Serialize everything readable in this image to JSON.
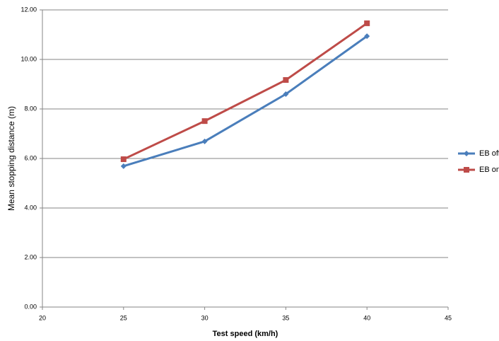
{
  "chart_data": {
    "type": "line",
    "x_label": "Test speed (km/h)",
    "y_label": "Mean stopping distance (m)",
    "x": [
      25,
      30,
      35,
      40
    ],
    "series": [
      {
        "name": "EB off",
        "color": "#4a7ebb",
        "marker": "diamond",
        "values": [
          5.69,
          6.69,
          8.6,
          10.94
        ]
      },
      {
        "name": "EB on",
        "color": "#be4b48",
        "marker": "square",
        "values": [
          5.97,
          7.51,
          9.17,
          11.46
        ]
      }
    ],
    "xlim": [
      20,
      45
    ],
    "xticks": [
      20,
      25,
      30,
      35,
      40,
      45
    ],
    "ylim": [
      0,
      12
    ],
    "yticks": [
      {
        "value": 0,
        "label": "0.00"
      },
      {
        "value": 2,
        "label": "2.00"
      },
      {
        "value": 4,
        "label": "4.00"
      },
      {
        "value": 6,
        "label": "6.00"
      },
      {
        "value": 8,
        "label": "8.00"
      },
      {
        "value": 10,
        "label": "10.00"
      },
      {
        "value": 12,
        "label": "12.00"
      }
    ],
    "grid": true,
    "legend": "right"
  }
}
